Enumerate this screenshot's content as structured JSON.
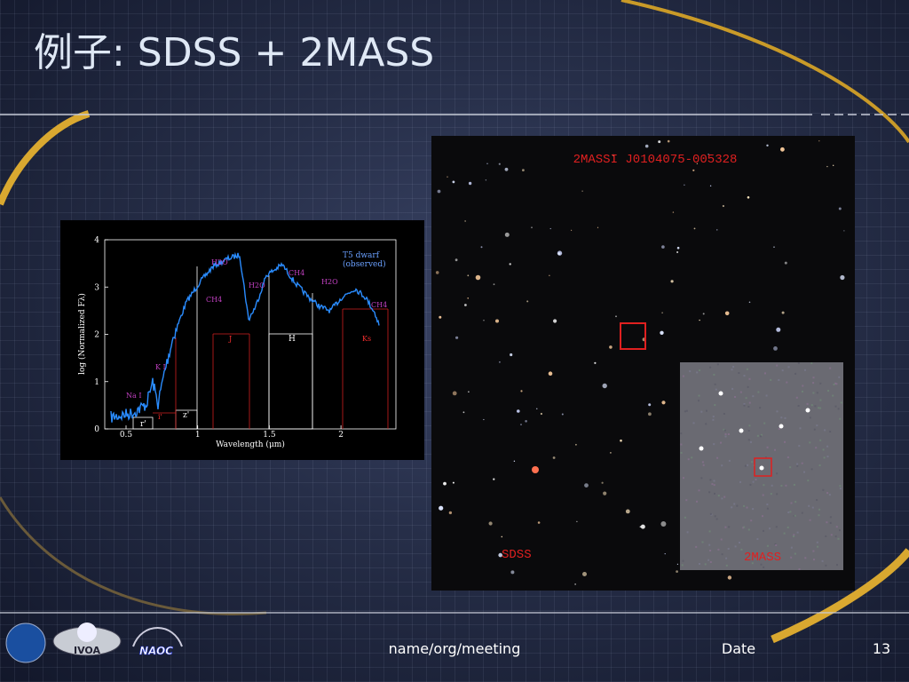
{
  "slide": {
    "title": "例子: SDSS + 2MASS",
    "spectrum": {
      "y_label": "log (Normalized Fλ)",
      "x_label": "Wavelength (μm)",
      "legend": [
        "T5 dwarf",
        "(observed)"
      ],
      "y_ticks": [
        "0",
        "1",
        "2",
        "3",
        "4"
      ],
      "x_ticks": [
        "0.5",
        "1",
        "1.5",
        "2"
      ],
      "features": [
        "H2O",
        "CH4",
        "H2O",
        "CH4",
        "H2O",
        "CH4",
        "Na I",
        "K I"
      ],
      "bands": [
        "r'",
        "i'",
        "z'",
        "J",
        "H",
        "Ks"
      ]
    },
    "sky_image": {
      "object": "2MASSI J0104075-005328",
      "survey_left": "SDSS",
      "survey_right": "2MASS"
    },
    "logos": [
      "IVOA",
      "NAOC"
    ],
    "footer": {
      "left": "name/org/meeting",
      "date": "Date",
      "page": "13"
    }
  }
}
